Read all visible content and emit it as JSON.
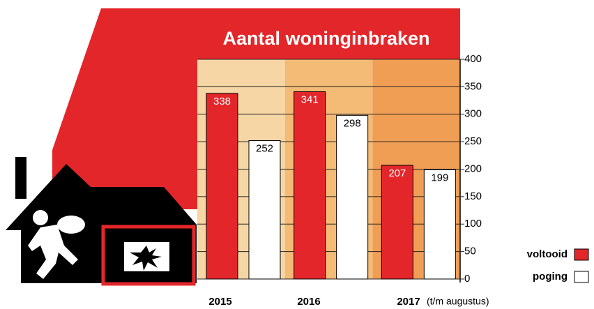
{
  "chart_data": {
    "type": "bar",
    "title": "Aantal woninginbraken",
    "categories": [
      "2015",
      "2016",
      "2017"
    ],
    "annotation": "(t/m augustus)",
    "series": [
      {
        "name": "voltooid",
        "color": "#e3262a",
        "values": [
          338,
          341,
          207
        ]
      },
      {
        "name": "poging",
        "color": "#ffffff",
        "values": [
          252,
          298,
          199
        ]
      }
    ],
    "ylim": [
      0,
      400
    ],
    "yticks": [
      0,
      50,
      100,
      150,
      200,
      250,
      300,
      350,
      400
    ],
    "grid": true,
    "band_colors": [
      "#f6d6a4",
      "#f4bb76",
      "#f19e55"
    ]
  }
}
